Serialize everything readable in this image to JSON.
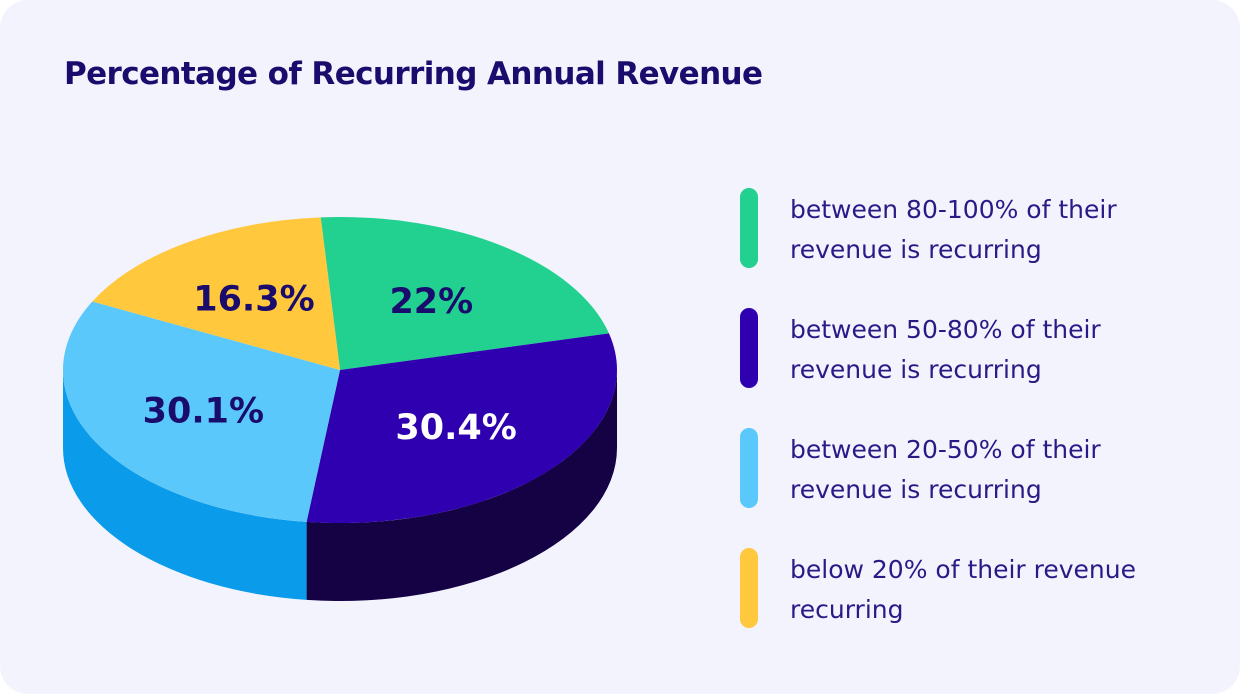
{
  "title": "Percentage of Recurring Annual Revenue",
  "chart_data": {
    "type": "pie",
    "title": "Percentage of Recurring Annual Revenue",
    "slices": [
      {
        "label": "22%",
        "value": 22,
        "legend": "between 80-100% of their revenue is recurring",
        "color": "#22d18f",
        "side_color": "#159e6b",
        "label_color": "#1a0c6d"
      },
      {
        "label": "30.4%",
        "value": 30.4,
        "legend": "between 50-80% of their revenue is recurring",
        "color": "#2e00b0",
        "side_color": "#140245",
        "label_color": "#ffffff"
      },
      {
        "label": "30.1%",
        "value": 30.1,
        "legend": "between 20-50% of their revenue is recurring",
        "color": "#5bc8fb",
        "side_color": "#0a9cea",
        "label_color": "#1a0c6d"
      },
      {
        "label": "16.3%",
        "value": 16.3,
        "legend": "below 20% of their revenue recurring",
        "color": "#ffc83d",
        "side_color": "#d9a21e",
        "label_color": "#1a0c6d"
      }
    ],
    "legend_position": "right"
  }
}
